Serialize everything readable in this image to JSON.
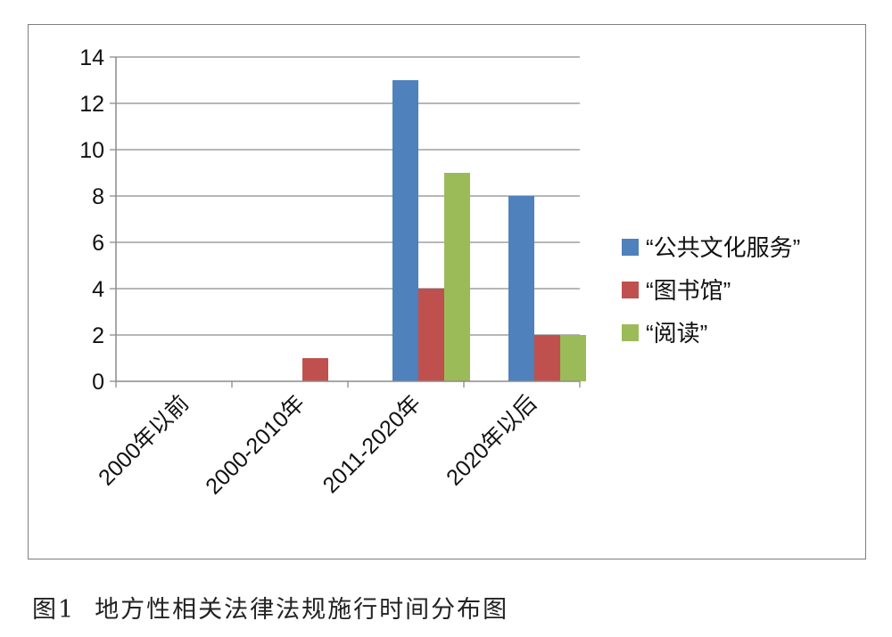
{
  "chart_data": {
    "type": "bar",
    "categories": [
      "2000年以前",
      "2000-2010年",
      "2011-2020年",
      "2020年以后"
    ],
    "series": [
      {
        "name": "“公共文化服务”",
        "color": "#4f81bd",
        "values": [
          0,
          0,
          13,
          8
        ]
      },
      {
        "name": "“图书馆”",
        "color": "#c0504d",
        "values": [
          0,
          1,
          4,
          2
        ]
      },
      {
        "name": "“阅读”",
        "color": "#9bbb59",
        "values": [
          0,
          0,
          9,
          2
        ]
      }
    ],
    "yticks": [
      0,
      2,
      4,
      6,
      8,
      10,
      12,
      14
    ],
    "ylim": [
      0,
      14
    ],
    "grid": true,
    "legend_position": "right"
  },
  "caption": {
    "label": "图1",
    "text": "地方性相关法律法规施行时间分布图"
  }
}
